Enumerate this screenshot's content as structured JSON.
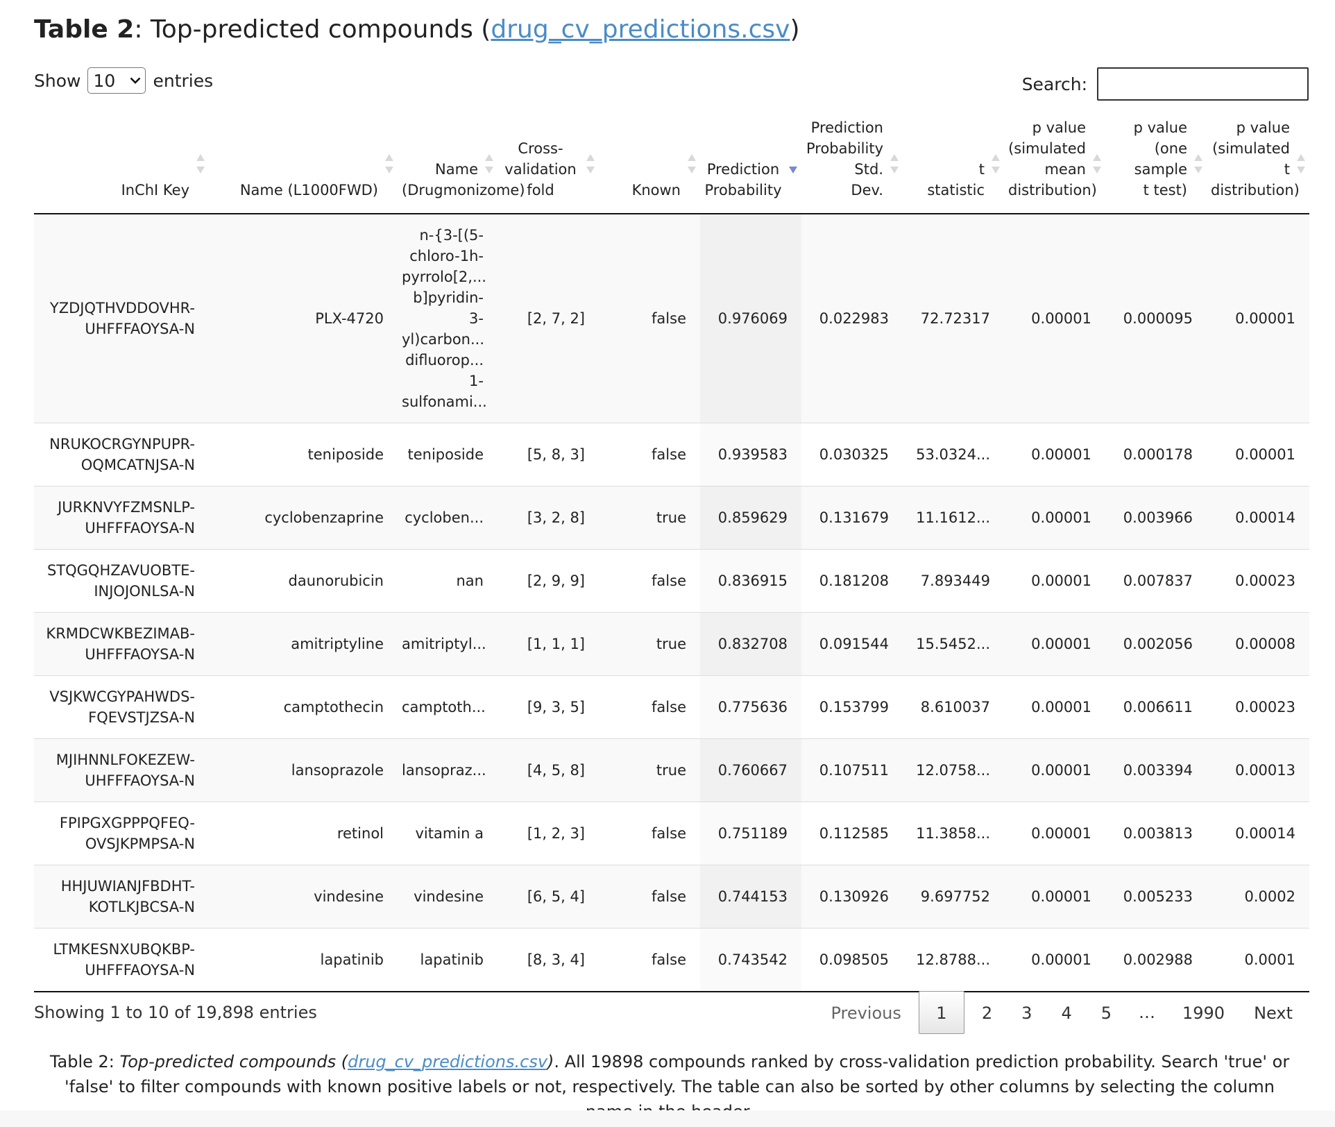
{
  "title": {
    "prefix": "Table 2",
    "sep": ": ",
    "text": "Top-predicted compounds (",
    "link": "drug_cv_predictions.csv",
    "suffix": ")"
  },
  "controls": {
    "show_label": "Show",
    "page_length": "10",
    "entries_label": "entries",
    "search_label": "Search:",
    "search_value": ""
  },
  "columns": [
    {
      "lines": [
        "InChI Key"
      ]
    },
    {
      "lines": [
        "Name (L1000FWD)"
      ]
    },
    {
      "lines": [
        "Name",
        "(Drugmonizome)"
      ]
    },
    {
      "lines": [
        "Cross-",
        "validation",
        "fold"
      ]
    },
    {
      "lines": [
        "Known"
      ]
    },
    {
      "lines": [
        "Prediction",
        "Probability"
      ],
      "sorted": "desc"
    },
    {
      "lines": [
        "Prediction",
        "Probability",
        "Std.",
        "Dev."
      ]
    },
    {
      "lines": [
        "t",
        "statistic"
      ]
    },
    {
      "lines": [
        "p value",
        "(simulated",
        "mean",
        "distribution)"
      ]
    },
    {
      "lines": [
        "p value",
        "(one",
        "sample",
        "t test)"
      ]
    },
    {
      "lines": [
        "p value",
        "(simulated",
        "t",
        "distribution)"
      ]
    }
  ],
  "rows": [
    {
      "inchi": [
        "YZDJQTHVDDOVHR-",
        "UHFFFAOYSA-N"
      ],
      "name_l1000": "PLX-4720",
      "name_drugmonizome": [
        "n-{3-[(5-",
        "chloro-1h-",
        "pyrrolo[2,...",
        "b]pyridin-",
        "3-",
        "yl)carbon...",
        "difluorop...",
        "1-",
        "sulfonami..."
      ],
      "fold": "[2, 7, 2]",
      "known": "false",
      "prob": "0.976069",
      "std": "0.022983",
      "t": "72.72317",
      "p_sim_mean": "0.00001",
      "p_one": "0.000095",
      "p_sim_t": "0.00001"
    },
    {
      "inchi": [
        "NRUKOCRGYNPUPR-",
        "OQMCATNJSA-N"
      ],
      "name_l1000": "teniposide",
      "name_drugmonizome": [
        "teniposide"
      ],
      "fold": "[5, 8, 3]",
      "known": "false",
      "prob": "0.939583",
      "std": "0.030325",
      "t": "53.0324...",
      "p_sim_mean": "0.00001",
      "p_one": "0.000178",
      "p_sim_t": "0.00001"
    },
    {
      "inchi": [
        "JURKNVYFZMSNLP-",
        "UHFFFAOYSA-N"
      ],
      "name_l1000": "cyclobenzaprine",
      "name_drugmonizome": [
        "cycloben..."
      ],
      "fold": "[3, 2, 8]",
      "known": "true",
      "prob": "0.859629",
      "std": "0.131679",
      "t": "11.1612...",
      "p_sim_mean": "0.00001",
      "p_one": "0.003966",
      "p_sim_t": "0.00014"
    },
    {
      "inchi": [
        "STQGQHZAVUOBTE-",
        "INJOJONLSA-N"
      ],
      "name_l1000": "daunorubicin",
      "name_drugmonizome": [
        "nan"
      ],
      "fold": "[2, 9, 9]",
      "known": "false",
      "prob": "0.836915",
      "std": "0.181208",
      "t": "7.893449",
      "p_sim_mean": "0.00001",
      "p_one": "0.007837",
      "p_sim_t": "0.00023"
    },
    {
      "inchi": [
        "KRMDCWKBEZIMAB-",
        "UHFFFAOYSA-N"
      ],
      "name_l1000": "amitriptyline",
      "name_drugmonizome": [
        "amitriptyl..."
      ],
      "fold": "[1, 1, 1]",
      "known": "true",
      "prob": "0.832708",
      "std": "0.091544",
      "t": "15.5452...",
      "p_sim_mean": "0.00001",
      "p_one": "0.002056",
      "p_sim_t": "0.00008"
    },
    {
      "inchi": [
        "VSJKWCGYPAHWDS-",
        "FQEVSTJZSA-N"
      ],
      "name_l1000": "camptothecin",
      "name_drugmonizome": [
        "camptoth..."
      ],
      "fold": "[9, 3, 5]",
      "known": "false",
      "prob": "0.775636",
      "std": "0.153799",
      "t": "8.610037",
      "p_sim_mean": "0.00001",
      "p_one": "0.006611",
      "p_sim_t": "0.00023"
    },
    {
      "inchi": [
        "MJIHNNLFOKEZEW-",
        "UHFFFAOYSA-N"
      ],
      "name_l1000": "lansoprazole",
      "name_drugmonizome": [
        "lansopraz..."
      ],
      "fold": "[4, 5, 8]",
      "known": "true",
      "prob": "0.760667",
      "std": "0.107511",
      "t": "12.0758...",
      "p_sim_mean": "0.00001",
      "p_one": "0.003394",
      "p_sim_t": "0.00013"
    },
    {
      "inchi": [
        "FPIPGXGPPPQFEQ-",
        "OVSJKPMPSA-N"
      ],
      "name_l1000": "retinol",
      "name_drugmonizome": [
        "vitamin a"
      ],
      "fold": "[1, 2, 3]",
      "known": "false",
      "prob": "0.751189",
      "std": "0.112585",
      "t": "11.3858...",
      "p_sim_mean": "0.00001",
      "p_one": "0.003813",
      "p_sim_t": "0.00014"
    },
    {
      "inchi": [
        "HHJUWIANJFBDHT-",
        "KOTLKJBCSA-N"
      ],
      "name_l1000": "vindesine",
      "name_drugmonizome": [
        "vindesine"
      ],
      "fold": "[6, 5, 4]",
      "known": "false",
      "prob": "0.744153",
      "std": "0.130926",
      "t": "9.697752",
      "p_sim_mean": "0.00001",
      "p_one": "0.005233",
      "p_sim_t": "0.0002"
    },
    {
      "inchi": [
        "LTMKESNXUBQKBP-",
        "UHFFFAOYSA-N"
      ],
      "name_l1000": "lapatinib",
      "name_drugmonizome": [
        "lapatinib"
      ],
      "fold": "[8, 3, 4]",
      "known": "false",
      "prob": "0.743542",
      "std": "0.098505",
      "t": "12.8788...",
      "p_sim_mean": "0.00001",
      "p_one": "0.002988",
      "p_sim_t": "0.0001"
    }
  ],
  "footer": {
    "info": "Showing 1 to 10 of 19,898 entries",
    "pagination": [
      "Previous",
      "1",
      "2",
      "3",
      "4",
      "5",
      "…",
      "1990",
      "Next"
    ],
    "current_page": "1"
  },
  "caption": {
    "prefix": "Table 2",
    "sep": ": ",
    "title_text": "Top-predicted compounds (",
    "link": "drug_cv_predictions.csv",
    "title_close": ")",
    "body": ". All 19898 compounds ranked by cross-validation prediction probability. Search 'true' or 'false' to filter compounds with known positive labels or not, respectively. The table can also be sorted by other columns by selecting the column name in the header."
  },
  "colors": {
    "link": "#4a8cc7",
    "sort_active": "#7a86d6",
    "row_stripe": "#f9f9f9",
    "sorted_column": "#f1f1f1"
  }
}
